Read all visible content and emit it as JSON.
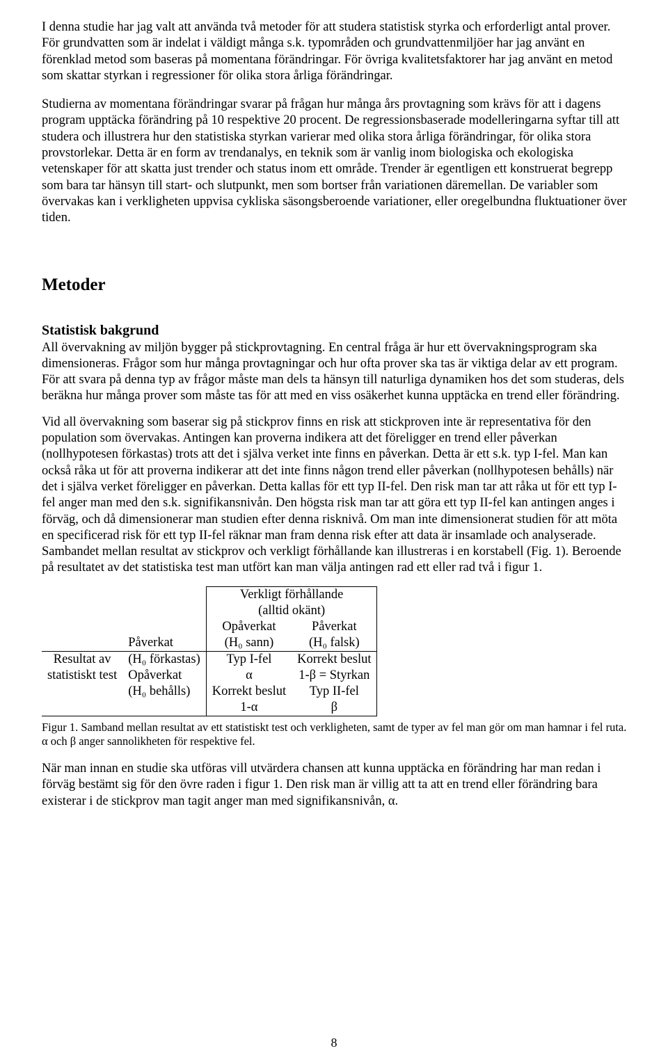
{
  "paragraphs": {
    "p1": "I denna studie har jag valt att använda två metoder för att studera statistisk styrka och erforderligt antal prover. För grundvatten som är indelat i väldigt många s.k. typområden och grundvattenmiljöer har jag använt en förenklad metod som baseras på momentana förändringar. För övriga kvalitetsfaktorer har jag använt en metod som skattar styrkan i regressioner för olika stora årliga förändringar.",
    "p2": "Studierna av momentana förändringar svarar på frågan hur många års provtagning som krävs för att i dagens program upptäcka förändring på 10 respektive 20 procent. De regressionsbaserade modelleringarna syftar till att studera och illustrera hur den statistiska styrkan varierar med olika stora årliga förändringar, för olika stora provstorlekar. Detta är en form av trendanalys, en teknik som är vanlig inom biologiska och ekologiska vetenskaper för att skatta just trender och status inom ett område. Trender är egentligen ett konstruerat begrepp som bara tar hänsyn till start- och slutpunkt, men som bortser från variationen däremellan. De variabler som övervakas kan i verkligheten uppvisa cykliska säsongsberoende variationer, eller oregelbundna fluktuationer över tiden.",
    "h2_methods": "Metoder",
    "h3_statbg": "Statistisk bakgrund",
    "p3": "All övervakning av miljön bygger på stickprovtagning. En central fråga är hur ett övervakningsprogram ska dimensioneras. Frågor som hur många provtagningar och hur ofta prover ska tas är viktiga delar av ett program. För att svara på denna typ av frågor måste man dels ta hänsyn till naturliga dynamiken hos det som studeras, dels beräkna hur många prover som måste tas för att med en viss osäkerhet kunna upptäcka en trend eller förändring.",
    "p4": "Vid all övervakning som baserar sig på stickprov finns en risk att stickproven inte är representativa för den population som övervakas. Antingen kan proverna indikera att det föreligger en trend eller påverkan (nollhypotesen förkastas) trots att det i själva verket inte finns en påverkan. Detta är ett s.k. typ I-fel. Man kan också råka ut för att proverna indikerar att det inte finns någon trend eller påverkan (nollhypotesen behålls) när det i själva verket föreligger en påverkan. Detta kallas för ett typ II-fel. Den risk man tar att råka ut för ett typ I-fel anger man med den s.k. signifikansnivån. Den högsta risk man tar att göra ett typ II-fel kan antingen anges i förväg, och då dimensionerar man studien efter denna risknivå. Om man inte dimensionerat studien för att möta en specificerad risk för ett typ II-fel räknar man fram denna risk efter att data är insamlade och analyserade. Sambandet mellan resultat av stickprov och verkligt förhållande kan illustreras i en korstabell (Fig. 1). Beroende på resultatet av det statistiska test man utfört kan man välja antingen rad ett eller rad två i figur 1.",
    "caption": "Figur 1. Samband mellan resultat av ett statistiskt test och verkligheten, samt de typer av fel man gör om man hamnar i fel ruta. α och β anger sannolikheten för respektive fel.",
    "p5": "När man innan en studie ska utföras vill utvärdera chansen att kunna upptäcka en förändring har man redan i förväg bestämt sig för den övre raden i figur 1. Den risk man är villig att ta att en trend eller förändring bara existerar i de stickprov man tagit anger man med signifikansnivån, α.",
    "page_number": "8"
  },
  "table": {
    "header_top": "Verkligt förhållande",
    "header_sub": "(alltid okänt)",
    "col1_top": "Opåverkat",
    "col1_sub": "(H₀ sann)",
    "col2_top": "Påverkat",
    "col2_sub": "(H₀ falsk)",
    "row_group_1": "Resultat av",
    "row_group_2": "statistiskt test",
    "row1_label_top": "Påverkat",
    "row1_label_sub": "(H₀ förkastas)",
    "row2_label_top": "Opåverkat",
    "row2_label_sub": "(H₀ behålls)",
    "r1c1_top": "Typ I-fel",
    "r1c1_sub": "α",
    "r1c2_top": "Korrekt beslut",
    "r1c2_sub": "1-β = Styrkan",
    "r2c1_top": "Korrekt beslut",
    "r2c1_sub": "1-α",
    "r2c2_top": "Typ II-fel",
    "r2c2_sub": "β"
  }
}
